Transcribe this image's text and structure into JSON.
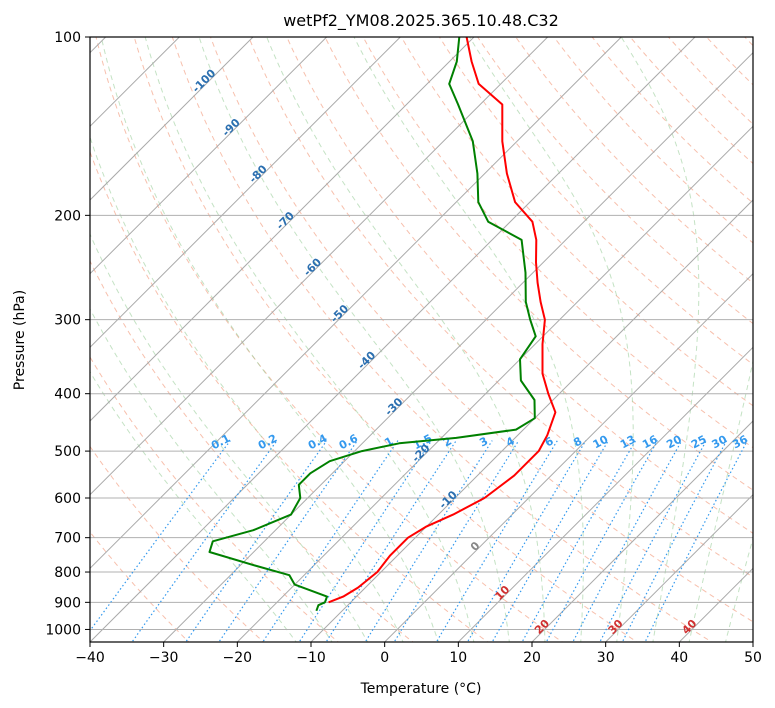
{
  "chart_data": {
    "type": "skew-t",
    "title": "wetPf2_YM08.2025.365.10.48.C32",
    "xlabel": "Temperature (°C)",
    "ylabel": "Pressure (hPa)",
    "xlim": [
      -40,
      50
    ],
    "ylim": [
      1050,
      100
    ],
    "y_scale": "log",
    "grid": true,
    "x_ticks": [
      -40,
      -30,
      -20,
      -10,
      0,
      10,
      20,
      30,
      40,
      50
    ],
    "y_ticks": [
      1000,
      900,
      800,
      700,
      600,
      500,
      400,
      300,
      200,
      100
    ],
    "isotherms": [
      -100,
      -90,
      -80,
      -70,
      -60,
      -50,
      -40,
      -30,
      -20,
      -10
    ],
    "warm_isotherms": [
      0,
      10,
      20,
      30,
      40
    ],
    "mixing_ratios": [
      "0.1",
      "0.2",
      "0.4",
      "0.6",
      "1",
      "1.5",
      "2",
      "3",
      "4",
      "6",
      "8",
      "10",
      "13",
      "16",
      "20",
      "25",
      "30",
      "36"
    ],
    "series": [
      {
        "color": "#ff0000",
        "points": [
          {
            "p": 900,
            "t": -13.0
          },
          {
            "p": 880,
            "t": -11.8
          },
          {
            "p": 850,
            "t": -11.0
          },
          {
            "p": 800,
            "t": -10.5
          },
          {
            "p": 750,
            "t": -11.0
          },
          {
            "p": 700,
            "t": -11.0
          },
          {
            "p": 670,
            "t": -10.0
          },
          {
            "p": 640,
            "t": -8.0
          },
          {
            "p": 600,
            "t": -6.0
          },
          {
            "p": 550,
            "t": -5.0
          },
          {
            "p": 500,
            "t": -5.0
          },
          {
            "p": 470,
            "t": -6.0
          },
          {
            "p": 430,
            "t": -8.0
          },
          {
            "p": 400,
            "t": -11.5
          },
          {
            "p": 370,
            "t": -15.0
          },
          {
            "p": 330,
            "t": -19.0
          },
          {
            "p": 300,
            "t": -22.0
          },
          {
            "p": 280,
            "t": -25.0
          },
          {
            "p": 260,
            "t": -28.0
          },
          {
            "p": 240,
            "t": -31.0
          },
          {
            "p": 220,
            "t": -34.0
          },
          {
            "p": 205,
            "t": -37.0
          },
          {
            "p": 190,
            "t": -42.0
          },
          {
            "p": 170,
            "t": -47.0
          },
          {
            "p": 150,
            "t": -52.0
          },
          {
            "p": 130,
            "t": -57.0
          },
          {
            "p": 120,
            "t": -63.0
          },
          {
            "p": 110,
            "t": -67.0
          },
          {
            "p": 100,
            "t": -71.0
          }
        ]
      },
      {
        "color": "#008000",
        "points": [
          {
            "p": 930,
            "t": -13.5
          },
          {
            "p": 910,
            "t": -14.0
          },
          {
            "p": 900,
            "t": -13.5
          },
          {
            "p": 880,
            "t": -14.0
          },
          {
            "p": 840,
            "t": -20.0
          },
          {
            "p": 810,
            "t": -22.0
          },
          {
            "p": 780,
            "t": -28.0
          },
          {
            "p": 740,
            "t": -36.0
          },
          {
            "p": 710,
            "t": -37.0
          },
          {
            "p": 680,
            "t": -33.0
          },
          {
            "p": 640,
            "t": -30.0
          },
          {
            "p": 600,
            "t": -31.0
          },
          {
            "p": 570,
            "t": -33.0
          },
          {
            "p": 545,
            "t": -33.0
          },
          {
            "p": 520,
            "t": -32.0
          },
          {
            "p": 500,
            "t": -29.0
          },
          {
            "p": 485,
            "t": -25.0
          },
          {
            "p": 475,
            "t": -18.0
          },
          {
            "p": 460,
            "t": -11.0
          },
          {
            "p": 440,
            "t": -10.0
          },
          {
            "p": 410,
            "t": -12.5
          },
          {
            "p": 380,
            "t": -17.0
          },
          {
            "p": 350,
            "t": -20.0
          },
          {
            "p": 320,
            "t": -21.0
          },
          {
            "p": 300,
            "t": -24.0
          },
          {
            "p": 280,
            "t": -27.0
          },
          {
            "p": 250,
            "t": -31.0
          },
          {
            "p": 220,
            "t": -36.0
          },
          {
            "p": 205,
            "t": -43.0
          },
          {
            "p": 190,
            "t": -47.0
          },
          {
            "p": 170,
            "t": -51.0
          },
          {
            "p": 150,
            "t": -56.0
          },
          {
            "p": 130,
            "t": -63.0
          },
          {
            "p": 120,
            "t": -67.0
          },
          {
            "p": 110,
            "t": -69.0
          },
          {
            "p": 100,
            "t": -72.0
          }
        ]
      }
    ]
  }
}
